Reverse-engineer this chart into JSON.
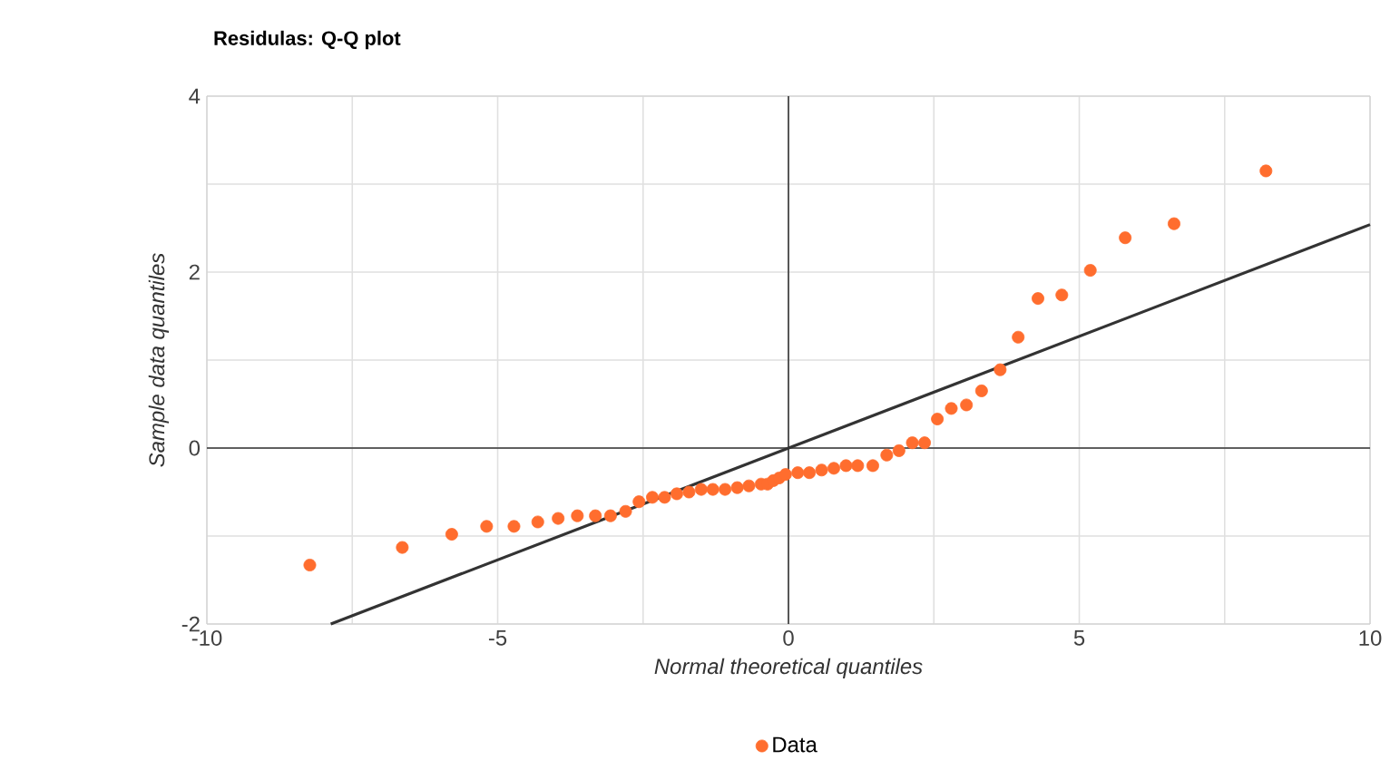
{
  "chart_data": {
    "type": "scatter",
    "title": "Residulas: Q-Q plot",
    "xlabel": "Normal theoretical quantiles",
    "ylabel": "Sample data quantiles",
    "xlim": [
      -10,
      10
    ],
    "ylim": [
      -2,
      4
    ],
    "xticks": [
      -10,
      {
        "value": -7.5,
        "label": null
      },
      -5,
      {
        "value": -2.5,
        "label": null
      },
      0,
      {
        "value": 2.5,
        "label": null
      },
      5,
      {
        "value": 7.5,
        "label": null
      },
      10
    ],
    "yticks": [
      -2,
      {
        "value": -1,
        "label": null
      },
      0,
      {
        "value": 1,
        "label": null
      },
      2,
      {
        "value": 3,
        "label": null
      },
      4
    ],
    "grid": true,
    "legend": "bottom",
    "series": [
      {
        "name": "Data",
        "marker": "circle",
        "color": "#ff6d2e",
        "x": [
          -8.23,
          -6.64,
          -5.79,
          -5.19,
          -4.72,
          -4.31,
          -3.96,
          -3.63,
          -3.32,
          -3.06,
          -2.8,
          -2.57,
          -2.34,
          -2.13,
          -1.92,
          -1.71,
          -1.5,
          -1.3,
          -1.09,
          -0.88,
          -0.68,
          -0.47,
          -0.36,
          -0.26,
          -0.16,
          -0.05,
          0.16,
          0.36,
          0.57,
          0.78,
          0.99,
          1.19,
          1.45,
          1.69,
          1.9,
          2.13,
          2.34,
          2.56,
          2.8,
          3.06,
          3.32,
          3.64,
          3.95,
          4.29,
          4.7,
          5.19,
          5.79,
          6.63,
          8.21
        ],
        "values": [
          -1.33,
          -1.13,
          -0.98,
          -0.89,
          -0.89,
          -0.84,
          -0.8,
          -0.77,
          -0.77,
          -0.77,
          -0.72,
          -0.61,
          -0.56,
          -0.56,
          -0.52,
          -0.5,
          -0.47,
          -0.47,
          -0.47,
          -0.45,
          -0.43,
          -0.41,
          -0.41,
          -0.37,
          -0.34,
          -0.3,
          -0.28,
          -0.28,
          -0.25,
          -0.23,
          -0.2,
          -0.2,
          -0.2,
          -0.08,
          -0.03,
          0.06,
          0.06,
          0.33,
          0.45,
          0.49,
          0.65,
          0.89,
          1.26,
          1.7,
          1.74,
          2.02,
          2.39,
          2.55,
          3.15
        ]
      },
      {
        "type": "line",
        "marker": "none",
        "line_style": "solid",
        "color": "#333333",
        "x": [
          -7.87,
          10
        ],
        "values": [
          -2,
          2.54
        ]
      }
    ]
  }
}
